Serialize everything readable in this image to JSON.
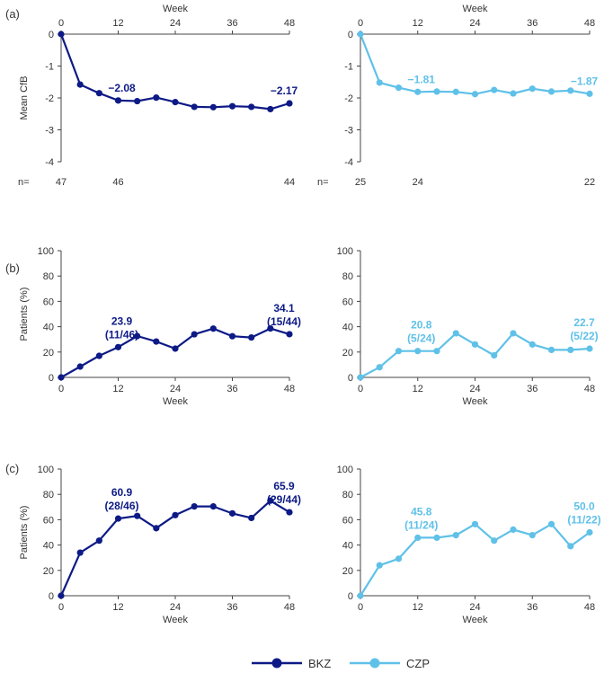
{
  "colors": {
    "bkz": "#0d1a86",
    "czp": "#5fc1e8",
    "axis": "#444444",
    "text": "#333333"
  },
  "panel_labels": [
    "(a)",
    "(b)",
    "(c)"
  ],
  "legend": {
    "items": [
      {
        "key": "bkz",
        "label": "BKZ"
      },
      {
        "key": "czp",
        "label": "CZP"
      }
    ]
  },
  "chart_data": [
    {
      "id": "a-bkz",
      "panel": "(a)",
      "type": "line",
      "xlabel": "Week",
      "xlabel_position": "top",
      "ylabel": "Mean CfB",
      "xlim": [
        0,
        48
      ],
      "ylim": [
        -4,
        0
      ],
      "xticks": [
        "0",
        "12",
        "24",
        "36",
        "48"
      ],
      "yticks": [
        "0",
        "-1",
        "-2",
        "-3",
        "-4"
      ],
      "series": [
        {
          "name": "BKZ",
          "color_key": "bkz",
          "x": [
            0,
            4,
            8,
            12,
            16,
            20,
            24,
            28,
            32,
            36,
            40,
            44,
            48
          ],
          "y": [
            0,
            -1.58,
            -1.85,
            -2.08,
            -2.1,
            -1.99,
            -2.13,
            -2.28,
            -2.29,
            -2.26,
            -2.28,
            -2.35,
            -2.17
          ]
        }
      ],
      "annotations": [
        {
          "x": 12,
          "y": -2.08,
          "text": "−2.08"
        },
        {
          "x": 48,
          "y": -2.17,
          "text": "−2.17"
        }
      ],
      "n_row": {
        "label": "n=",
        "values": [
          {
            "x": 0,
            "text": "47"
          },
          {
            "x": 12,
            "text": "46"
          },
          {
            "x": 48,
            "text": "44"
          }
        ]
      }
    },
    {
      "id": "a-czp",
      "panel": "(a)",
      "type": "line",
      "xlabel": "Week",
      "xlabel_position": "top",
      "ylabel": "",
      "xlim": [
        0,
        48
      ],
      "ylim": [
        -4,
        0
      ],
      "xticks": [
        "0",
        "12",
        "24",
        "36",
        "48"
      ],
      "yticks": [
        "0",
        "-1",
        "-2",
        "-3",
        "-4"
      ],
      "series": [
        {
          "name": "CZP",
          "color_key": "czp",
          "x": [
            0,
            4,
            8,
            12,
            16,
            20,
            24,
            28,
            32,
            36,
            40,
            44,
            48
          ],
          "y": [
            0,
            -1.52,
            -1.68,
            -1.81,
            -1.8,
            -1.81,
            -1.88,
            -1.75,
            -1.86,
            -1.71,
            -1.8,
            -1.77,
            -1.87
          ]
        }
      ],
      "annotations": [
        {
          "x": 12,
          "y": -1.81,
          "text": "−1.81"
        },
        {
          "x": 48,
          "y": -1.87,
          "text": "−1.87"
        }
      ],
      "n_row": {
        "label": "n=",
        "values": [
          {
            "x": 0,
            "text": "25"
          },
          {
            "x": 12,
            "text": "24"
          },
          {
            "x": 48,
            "text": "22"
          }
        ]
      }
    },
    {
      "id": "b-bkz",
      "panel": "(b)",
      "type": "line",
      "xlabel": "Week",
      "xlabel_position": "bottom",
      "ylabel": "Patients (%)",
      "xlim": [
        0,
        48
      ],
      "ylim": [
        0,
        100
      ],
      "xticks": [
        "0",
        "12",
        "24",
        "36",
        "48"
      ],
      "yticks": [
        "0",
        "20",
        "40",
        "60",
        "80",
        "100"
      ],
      "series": [
        {
          "name": "BKZ",
          "color_key": "bkz",
          "x": [
            0,
            4,
            8,
            12,
            16,
            20,
            24,
            28,
            32,
            36,
            40,
            44,
            48
          ],
          "y": [
            0,
            8.5,
            17,
            23.9,
            32.6,
            28.3,
            22.7,
            34,
            38.5,
            32.5,
            31.5,
            38.6,
            34.1
          ]
        }
      ],
      "annotations": [
        {
          "x": 12,
          "y": 23.9,
          "lines": [
            "23.9",
            "(11/46)"
          ]
        },
        {
          "x": 48,
          "y": 34.1,
          "lines": [
            "34.1",
            "(15/44)"
          ]
        }
      ]
    },
    {
      "id": "b-czp",
      "panel": "(b)",
      "type": "line",
      "xlabel": "Week",
      "xlabel_position": "bottom",
      "ylabel": "",
      "xlim": [
        0,
        48
      ],
      "ylim": [
        0,
        100
      ],
      "xticks": [
        "0",
        "12",
        "24",
        "36",
        "48"
      ],
      "yticks": [
        "0",
        "20",
        "40",
        "60",
        "80",
        "100"
      ],
      "series": [
        {
          "name": "CZP",
          "color_key": "czp",
          "x": [
            0,
            4,
            8,
            12,
            16,
            20,
            24,
            28,
            32,
            36,
            40,
            44,
            48
          ],
          "y": [
            0,
            8,
            20.8,
            20.8,
            20.8,
            34.8,
            26,
            17.4,
            34.8,
            26,
            21.7,
            21.7,
            22.7
          ]
        }
      ],
      "annotations": [
        {
          "x": 12,
          "y": 20.8,
          "lines": [
            "20.8",
            "(5/24)"
          ]
        },
        {
          "x": 48,
          "y": 22.7,
          "lines": [
            "22.7",
            "(5/22)"
          ]
        }
      ]
    },
    {
      "id": "c-bkz",
      "panel": "(c)",
      "type": "line",
      "xlabel": "Week",
      "xlabel_position": "bottom",
      "ylabel": "Patients (%)",
      "xlim": [
        0,
        48
      ],
      "ylim": [
        0,
        100
      ],
      "xticks": [
        "0",
        "12",
        "24",
        "36",
        "48"
      ],
      "yticks": [
        "0",
        "20",
        "40",
        "60",
        "80",
        "100"
      ],
      "series": [
        {
          "name": "BKZ",
          "color_key": "bkz",
          "x": [
            0,
            4,
            8,
            12,
            16,
            20,
            24,
            28,
            32,
            36,
            40,
            44,
            48
          ],
          "y": [
            0,
            34,
            43.5,
            60.9,
            63,
            53.3,
            63.6,
            70.5,
            70.5,
            65,
            61.4,
            75,
            65.9
          ]
        }
      ],
      "annotations": [
        {
          "x": 12,
          "y": 60.9,
          "lines": [
            "60.9",
            "(28/46)"
          ]
        },
        {
          "x": 48,
          "y": 65.9,
          "lines": [
            "65.9",
            "(29/44)"
          ]
        }
      ]
    },
    {
      "id": "c-czp",
      "panel": "(c)",
      "type": "line",
      "xlabel": "Week",
      "xlabel_position": "bottom",
      "ylabel": "",
      "xlim": [
        0,
        48
      ],
      "ylim": [
        0,
        100
      ],
      "xticks": [
        "0",
        "12",
        "24",
        "36",
        "48"
      ],
      "yticks": [
        "0",
        "20",
        "40",
        "60",
        "80",
        "100"
      ],
      "series": [
        {
          "name": "CZP",
          "color_key": "czp",
          "x": [
            0,
            4,
            8,
            12,
            16,
            20,
            24,
            28,
            32,
            36,
            40,
            44,
            48
          ],
          "y": [
            0,
            24,
            29.2,
            45.8,
            45.8,
            47.8,
            56.5,
            43.5,
            52.2,
            47.8,
            56.5,
            39.1,
            50
          ]
        }
      ],
      "annotations": [
        {
          "x": 12,
          "y": 45.8,
          "lines": [
            "45.8",
            "(11/24)"
          ]
        },
        {
          "x": 48,
          "y": 50,
          "lines": [
            "50.0",
            "(11/22)"
          ]
        }
      ]
    }
  ]
}
